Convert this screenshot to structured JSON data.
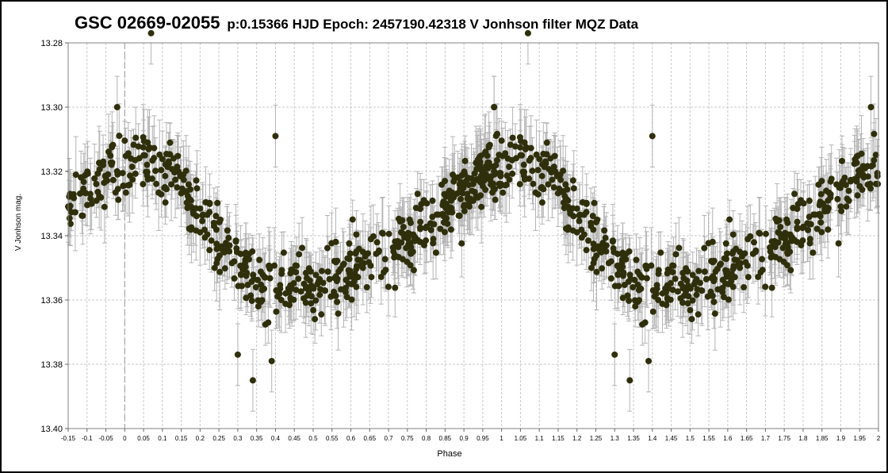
{
  "chart_data": {
    "type": "scatter",
    "title_main": "GSC 02669-02055",
    "title_rest": "p:0.15366 HJD Epoch: 2457190.42318  V Jonhson filter  MQZ Data",
    "xlabel": "Phase",
    "ylabel": "V Jonhson mag.",
    "xlim": [
      -0.15,
      2.0
    ],
    "ylim": [
      13.4,
      13.28
    ],
    "y_inverted": true,
    "grid": true,
    "x_ticks": [
      "-0.15",
      "-0.1",
      "-0.05",
      "0",
      "0.05",
      "0.1",
      "0.15",
      "0.2",
      "0.25",
      "0.3",
      "0.35",
      "0.4",
      "0.45",
      "0.5",
      "0.55",
      "0.6",
      "0.65",
      "0.7",
      "0.75",
      "0.8",
      "0.85",
      "0.9",
      "0.95",
      "1",
      "1.05",
      "1.1",
      "1.15",
      "1.2",
      "1.25",
      "1.3",
      "1.35",
      "1.4",
      "1.45",
      "1.5",
      "1.55",
      "1.6",
      "1.65",
      "1.7",
      "1.75",
      "1.8",
      "1.85",
      "1.9",
      "1.95",
      "2"
    ],
    "y_ticks": [
      "13.28",
      "13.30",
      "13.32",
      "13.34",
      "13.36",
      "13.38",
      "13.40"
    ],
    "marker_color": "#2f2f0c",
    "errorbar_color": "#b4b4b4",
    "light_curve": {
      "period": 1.0,
      "mean_mag": 13.333,
      "max_phase_mag": 13.32,
      "min_phase_mag": 13.358,
      "primary_min_phase": 0.33,
      "max_phase": 0.0,
      "scatter_mag": 0.009,
      "typical_error": 0.008
    },
    "notable_points": [
      {
        "x": 0.07,
        "y": 13.277
      },
      {
        "x": 1.07,
        "y": 13.277
      },
      {
        "x": 0.34,
        "y": 13.385
      },
      {
        "x": 1.34,
        "y": 13.385
      },
      {
        "x": 0.3,
        "y": 13.377
      },
      {
        "x": 1.3,
        "y": 13.377
      },
      {
        "x": 0.39,
        "y": 13.379
      },
      {
        "x": 1.39,
        "y": 13.379
      },
      {
        "x": -0.02,
        "y": 13.3
      },
      {
        "x": 0.98,
        "y": 13.3
      },
      {
        "x": 0.4,
        "y": 13.309
      },
      {
        "x": 1.4,
        "y": 13.309
      }
    ]
  }
}
